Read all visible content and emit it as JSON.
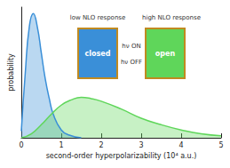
{
  "chart_data": {
    "type": "line",
    "x_label": "second-order hyperpolarizability (10⁴ a.u.)",
    "y_label": "probability",
    "xlim": [
      0,
      5
    ],
    "xticks": [
      0,
      1,
      2,
      3,
      4,
      5
    ],
    "ylim": [
      0,
      1
    ],
    "grid": false,
    "tick_labels": "x",
    "series": [
      {
        "name": "closed",
        "color": "#3a8fd8",
        "x": [
          0,
          0.1,
          0.2,
          0.3,
          0.4,
          0.5,
          0.6,
          0.7,
          0.8,
          1.0,
          1.2,
          1.5
        ],
        "values": [
          0.05,
          0.5,
          0.85,
          0.95,
          0.85,
          0.65,
          0.45,
          0.3,
          0.18,
          0.06,
          0.02,
          0
        ]
      },
      {
        "name": "open",
        "color": "#5fd65a",
        "x": [
          0,
          0.25,
          0.5,
          0.75,
          1,
          1.25,
          1.5,
          1.75,
          2,
          2.5,
          3,
          3.5,
          4,
          4.5,
          5
        ],
        "values": [
          0,
          0.03,
          0.1,
          0.18,
          0.25,
          0.29,
          0.31,
          0.3,
          0.28,
          0.22,
          0.15,
          0.1,
          0.06,
          0.03,
          0.015
        ]
      }
    ],
    "annotations": [
      "low NLO response",
      "high NLO response",
      "hν ON",
      "hν OFF"
    ]
  }
}
